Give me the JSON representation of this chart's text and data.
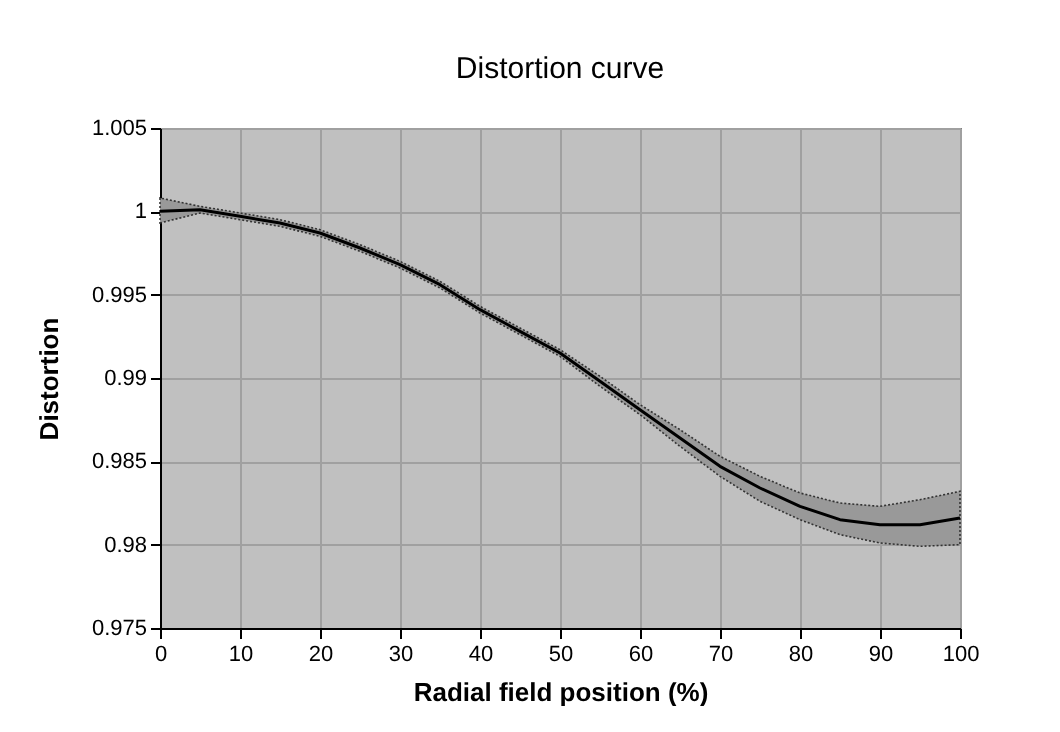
{
  "chart_data": {
    "type": "line",
    "title": "Distortion curve",
    "xlabel": "Radial field position (%)",
    "ylabel": "Distortion",
    "x": [
      0,
      5,
      10,
      15,
      20,
      25,
      30,
      35,
      40,
      45,
      50,
      55,
      60,
      65,
      70,
      75,
      80,
      85,
      90,
      95,
      100
    ],
    "series": [
      {
        "color": "#000000",
        "values": [
          1.0,
          1.0001,
          0.9997,
          0.9993,
          0.9987,
          0.9978,
          0.9968,
          0.9956,
          0.9941,
          0.9928,
          0.9915,
          0.9898,
          0.9881,
          0.9864,
          0.9847,
          0.9834,
          0.9823,
          0.9815,
          0.9812,
          0.9812,
          0.9816
        ],
        "lower": [
          0.9993,
          0.9999,
          0.9995,
          0.9991,
          0.9985,
          0.9976,
          0.9966,
          0.9954,
          0.9939,
          0.9926,
          0.9913,
          0.9895,
          0.9878,
          0.9859,
          0.9841,
          0.9826,
          0.9815,
          0.9806,
          0.9801,
          0.9799,
          0.98
        ],
        "upper": [
          1.0008,
          1.0003,
          0.9999,
          0.9995,
          0.9989,
          0.998,
          0.997,
          0.9958,
          0.9943,
          0.993,
          0.9917,
          0.9901,
          0.9884,
          0.9869,
          0.9853,
          0.9841,
          0.9831,
          0.9825,
          0.9823,
          0.9827,
          0.9832
        ]
      }
    ],
    "xlim": [
      0,
      100
    ],
    "xticks": [
      0,
      10,
      20,
      30,
      40,
      50,
      60,
      70,
      80,
      90,
      100
    ],
    "ylim": [
      0.975,
      1.005
    ],
    "yticks": [
      0.975,
      0.98,
      0.985,
      0.99,
      0.995,
      1,
      1.005
    ],
    "grid": true,
    "marker": "none",
    "line_style": "solid"
  }
}
